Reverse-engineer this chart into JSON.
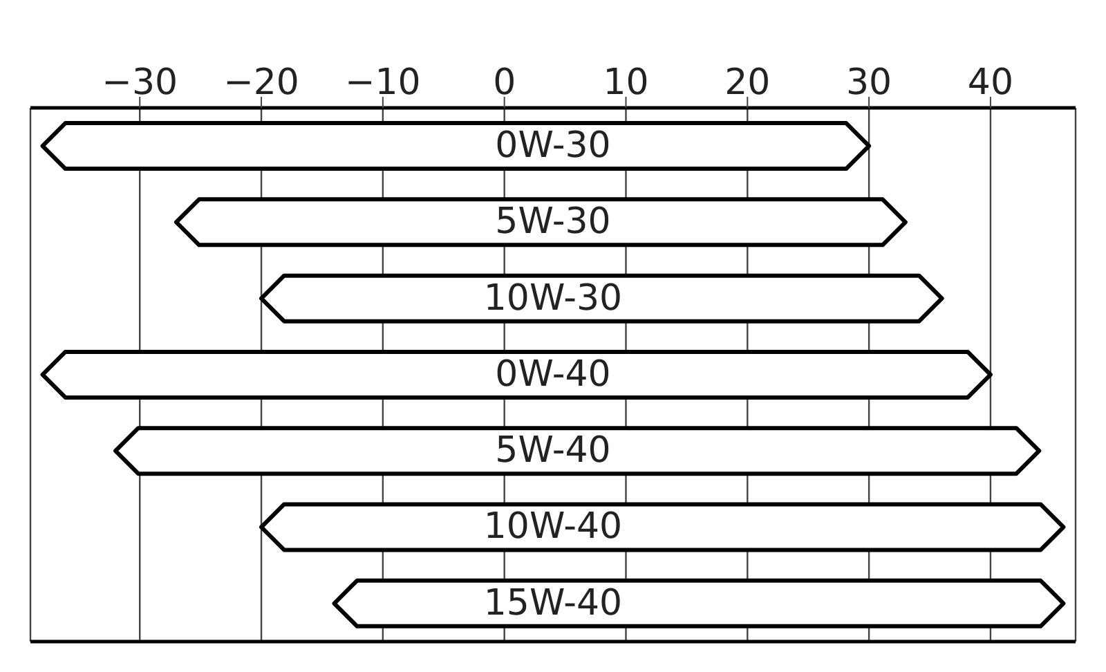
{
  "chart_data": {
    "type": "bar",
    "orientation": "horizontal",
    "categories": [
      "0W-30",
      "5W-30",
      "10W-30",
      "0W-40",
      "5W-40",
      "10W-40",
      "15W-40"
    ],
    "base": [
      -38,
      -27,
      -20,
      -38,
      -32,
      -20,
      -14
    ],
    "values": [
      68,
      60,
      56,
      78,
      76,
      66,
      60
    ],
    "color": "#ffffff",
    "xlim": [
      -39,
      47
    ],
    "xticks": [
      -30,
      -20,
      -10,
      0,
      10,
      20,
      30,
      40
    ],
    "grid": "x",
    "tick_labels": "x"
  }
}
